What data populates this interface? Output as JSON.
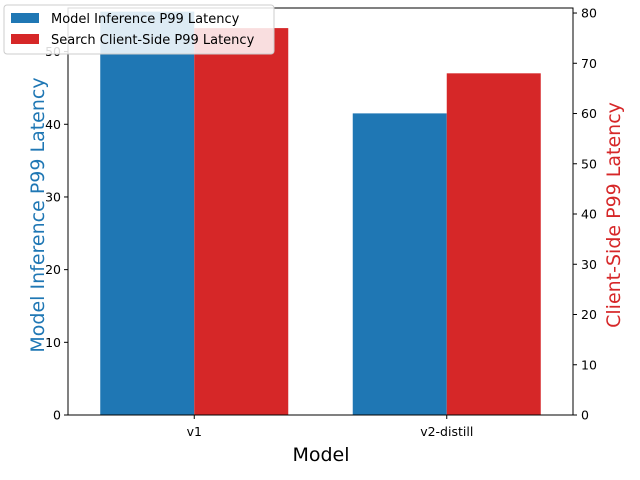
{
  "chart_data": {
    "type": "bar",
    "title": "",
    "xlabel": "Model",
    "ylabel_left": "Model Inference P99 Latency",
    "ylabel_right": "Client-Side P99 Latency",
    "categories": [
      "v1",
      "v2-distill"
    ],
    "ylim_left": [
      0,
      56
    ],
    "ylim_right": [
      0,
      81
    ],
    "yticks_left": [
      0,
      10,
      20,
      30,
      40,
      50
    ],
    "yticks_right": [
      0,
      10,
      20,
      30,
      40,
      50,
      60,
      70,
      80
    ],
    "grid": false,
    "legend_position": "top-left",
    "series": [
      {
        "name": "Model Inference P99 Latency",
        "axis": "left",
        "color": "#1f77b4",
        "values": [
          55.5,
          41.5
        ]
      },
      {
        "name": "Search Client-Side P99 Latency",
        "axis": "right",
        "color": "#d62728",
        "values": [
          77,
          68
        ]
      }
    ],
    "colors": {
      "left_axis_label": "#1f77b4",
      "right_axis_label": "#d62728"
    }
  }
}
